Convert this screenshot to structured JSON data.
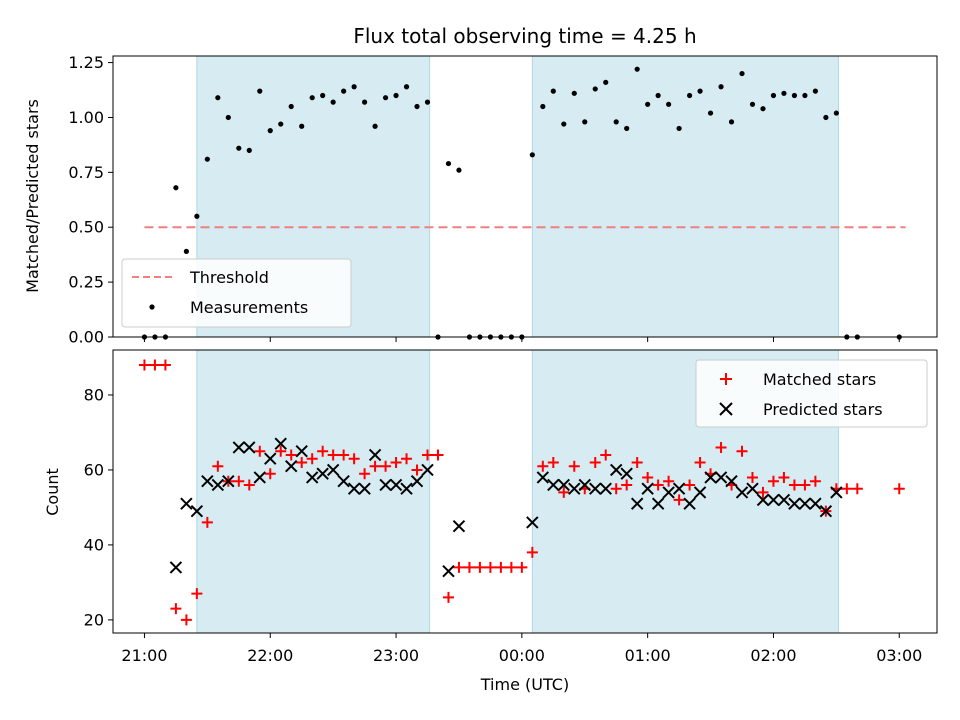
{
  "chart_data": [
    {
      "type": "scatter",
      "title": "Flux total observing time = 4.25 h",
      "xlabel": "",
      "ylabel": "Matched/Predicted stars",
      "ylim": [
        0,
        1.28
      ],
      "yticks": [
        0.0,
        0.25,
        0.5,
        0.75,
        1.0,
        1.25
      ],
      "ytick_labels": [
        "0.00",
        "0.25",
        "0.50",
        "0.75",
        "1.00",
        "1.25"
      ],
      "xlim": [
        "20:45",
        "03:18"
      ],
      "xticks_show_labels": false,
      "legend_position": "lower-left",
      "shaded_intervals": [
        [
          "21:25",
          "23:16"
        ],
        [
          "00:05",
          "02:31"
        ]
      ],
      "shaded_color": "#add8e6",
      "threshold": {
        "name": "Threshold",
        "value": 0.5,
        "x_range": [
          "21:00",
          "03:03"
        ],
        "color": "#f08080",
        "style": "dashed"
      },
      "series": [
        {
          "name": "Measurements",
          "color": "#000000",
          "marker": "dot",
          "x": [
            "21:00",
            "21:05",
            "21:10",
            "21:15",
            "21:20",
            "21:25",
            "21:30",
            "21:35",
            "21:40",
            "21:45",
            "21:50",
            "21:55",
            "22:00",
            "22:05",
            "22:10",
            "22:15",
            "22:20",
            "22:25",
            "22:30",
            "22:35",
            "22:40",
            "22:45",
            "22:50",
            "22:55",
            "23:00",
            "23:05",
            "23:10",
            "23:15",
            "23:20",
            "23:25",
            "23:30",
            "23:35",
            "23:40",
            "23:45",
            "23:50",
            "23:55",
            "00:00",
            "00:05",
            "00:10",
            "00:15",
            "00:20",
            "00:25",
            "00:30",
            "00:35",
            "00:40",
            "00:45",
            "00:50",
            "00:55",
            "01:00",
            "01:05",
            "01:10",
            "01:15",
            "01:20",
            "01:25",
            "01:30",
            "01:35",
            "01:40",
            "01:45",
            "01:50",
            "01:55",
            "02:00",
            "02:05",
            "02:10",
            "02:15",
            "02:20",
            "02:25",
            "02:30",
            "02:35",
            "02:40",
            "03:00"
          ],
          "y": [
            0,
            0,
            0,
            0.68,
            0.39,
            0.55,
            0.81,
            1.09,
            1.0,
            0.86,
            0.85,
            1.12,
            0.94,
            0.97,
            1.05,
            0.96,
            1.09,
            1.1,
            1.07,
            1.12,
            1.14,
            1.07,
            0.96,
            1.09,
            1.1,
            1.14,
            1.05,
            1.07,
            0,
            0.79,
            0.76,
            0,
            0,
            0,
            0,
            0,
            0,
            0.83,
            1.05,
            1.12,
            0.97,
            1.11,
            0.98,
            1.13,
            1.16,
            0.98,
            0.95,
            1.22,
            1.06,
            1.1,
            1.06,
            0.95,
            1.1,
            1.12,
            1.02,
            1.14,
            0.98,
            1.2,
            1.06,
            1.04,
            1.1,
            1.11,
            1.1,
            1.1,
            1.12,
            1.0,
            1.02,
            0,
            0,
            0
          ]
        }
      ]
    },
    {
      "type": "scatter",
      "xlabel": "Time (UTC)",
      "ylabel": "Count",
      "ylim": [
        16.5,
        92
      ],
      "yticks": [
        20,
        40,
        60,
        80
      ],
      "ytick_labels": [
        "20",
        "40",
        "60",
        "80"
      ],
      "xlim": [
        "20:45",
        "03:18"
      ],
      "xticks": [
        "21:00",
        "22:00",
        "23:00",
        "00:00",
        "01:00",
        "02:00",
        "03:00"
      ],
      "legend_position": "upper-right",
      "shaded_intervals": [
        [
          "21:25",
          "23:16"
        ],
        [
          "00:05",
          "02:31"
        ]
      ],
      "shaded_color": "#add8e6",
      "series": [
        {
          "name": "Matched stars",
          "color": "#ff0000",
          "marker": "plus",
          "x": [
            "21:00",
            "21:05",
            "21:10",
            "21:15",
            "21:20",
            "21:25",
            "21:30",
            "21:35",
            "21:40",
            "21:45",
            "21:50",
            "21:55",
            "22:00",
            "22:05",
            "22:10",
            "22:15",
            "22:20",
            "22:25",
            "22:30",
            "22:35",
            "22:40",
            "22:45",
            "22:50",
            "22:55",
            "23:00",
            "23:05",
            "23:10",
            "23:15",
            "23:20",
            "23:25",
            "23:30",
            "23:35",
            "23:40",
            "23:45",
            "23:50",
            "23:55",
            "00:00",
            "00:05",
            "00:10",
            "00:15",
            "00:20",
            "00:25",
            "00:30",
            "00:35",
            "00:40",
            "00:45",
            "00:50",
            "00:55",
            "01:00",
            "01:05",
            "01:10",
            "01:15",
            "01:20",
            "01:25",
            "01:30",
            "01:35",
            "01:40",
            "01:45",
            "01:50",
            "01:55",
            "02:00",
            "02:05",
            "02:10",
            "02:15",
            "02:20",
            "02:25",
            "02:30",
            "02:35",
            "02:40",
            "03:00"
          ],
          "y": [
            88,
            88,
            88,
            23,
            20,
            27,
            46,
            61,
            57,
            57,
            56,
            65,
            59,
            65,
            64,
            62,
            63,
            65,
            64,
            64,
            63,
            59,
            61,
            61,
            62,
            63,
            60,
            64,
            64,
            26,
            34,
            34,
            34,
            34,
            34,
            34,
            34,
            38,
            61,
            62,
            54,
            61,
            55,
            62,
            64,
            55,
            56,
            62,
            58,
            56,
            57,
            52,
            56,
            62,
            59,
            66,
            56,
            65,
            58,
            54,
            57,
            58,
            56,
            56,
            57,
            49,
            55,
            55,
            55,
            55
          ]
        },
        {
          "name": "Predicted stars",
          "color": "#000000",
          "marker": "x",
          "x": [
            "21:15",
            "21:20",
            "21:25",
            "21:30",
            "21:35",
            "21:40",
            "21:45",
            "21:50",
            "21:55",
            "22:00",
            "22:05",
            "22:10",
            "22:15",
            "22:20",
            "22:25",
            "22:30",
            "22:35",
            "22:40",
            "22:45",
            "22:50",
            "22:55",
            "23:00",
            "23:05",
            "23:10",
            "23:15",
            "23:25",
            "23:30",
            "00:05",
            "00:10",
            "00:15",
            "00:20",
            "00:25",
            "00:30",
            "00:35",
            "00:40",
            "00:45",
            "00:50",
            "00:55",
            "01:00",
            "01:05",
            "01:10",
            "01:15",
            "01:20",
            "01:25",
            "01:30",
            "01:35",
            "01:40",
            "01:45",
            "01:50",
            "01:55",
            "02:00",
            "02:05",
            "02:10",
            "02:15",
            "02:20",
            "02:25",
            "02:30"
          ],
          "y": [
            34,
            51,
            49,
            57,
            56,
            57,
            66,
            66,
            58,
            63,
            67,
            61,
            65,
            58,
            59,
            60,
            57,
            55,
            55,
            64,
            56,
            56,
            55,
            57,
            60,
            33,
            45,
            46,
            58,
            56,
            56,
            55,
            56,
            55,
            55,
            60,
            59,
            51,
            55,
            51,
            54,
            55,
            51,
            54,
            58,
            58,
            57,
            54,
            55,
            52,
            52,
            52,
            51,
            51,
            51,
            49,
            54
          ]
        }
      ]
    }
  ]
}
